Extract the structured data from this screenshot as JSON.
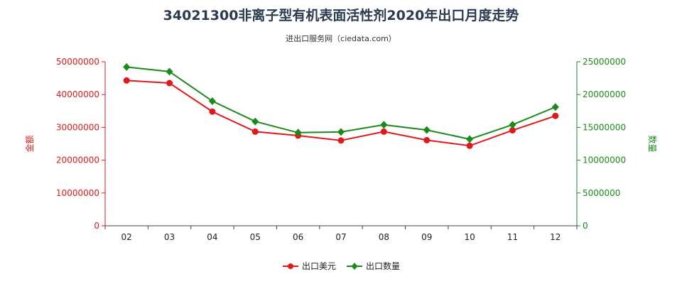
{
  "chart_data": {
    "type": "line",
    "title": "34021300非离子型有机表面活性剂2020年出口月度走势",
    "subtitle": "进出口服务网（ciedata.com）",
    "categories": [
      "02",
      "03",
      "04",
      "05",
      "06",
      "07",
      "08",
      "09",
      "10",
      "11",
      "12"
    ],
    "series": [
      {
        "name": "出口美元",
        "axis": "left",
        "color": "#e0191a",
        "values": [
          44300000,
          43500000,
          34800000,
          28700000,
          27500000,
          26000000,
          28700000,
          26100000,
          24400000,
          29100000,
          33500000
        ]
      },
      {
        "name": "出口数量",
        "axis": "right",
        "color": "#1b8a1b",
        "values": [
          24200000,
          23500000,
          19000000,
          15900000,
          14200000,
          14300000,
          15400000,
          14600000,
          13200000,
          15400000,
          18100000
        ]
      }
    ],
    "ylabel_left": "金额",
    "ylabel_right": "数量",
    "ylim_left": [
      0,
      50000000
    ],
    "ylim_right": [
      0,
      25000000
    ],
    "yticks_left": [
      "0",
      "10000000",
      "20000000",
      "30000000",
      "40000000",
      "50000000"
    ],
    "yticks_right": [
      "0",
      "5000000",
      "10000000",
      "15000000",
      "20000000",
      "25000000"
    ],
    "left_axis_color": "#e0191a",
    "right_axis_color": "#1b8a1b",
    "grid": false,
    "legend_position": "bottom-center"
  }
}
